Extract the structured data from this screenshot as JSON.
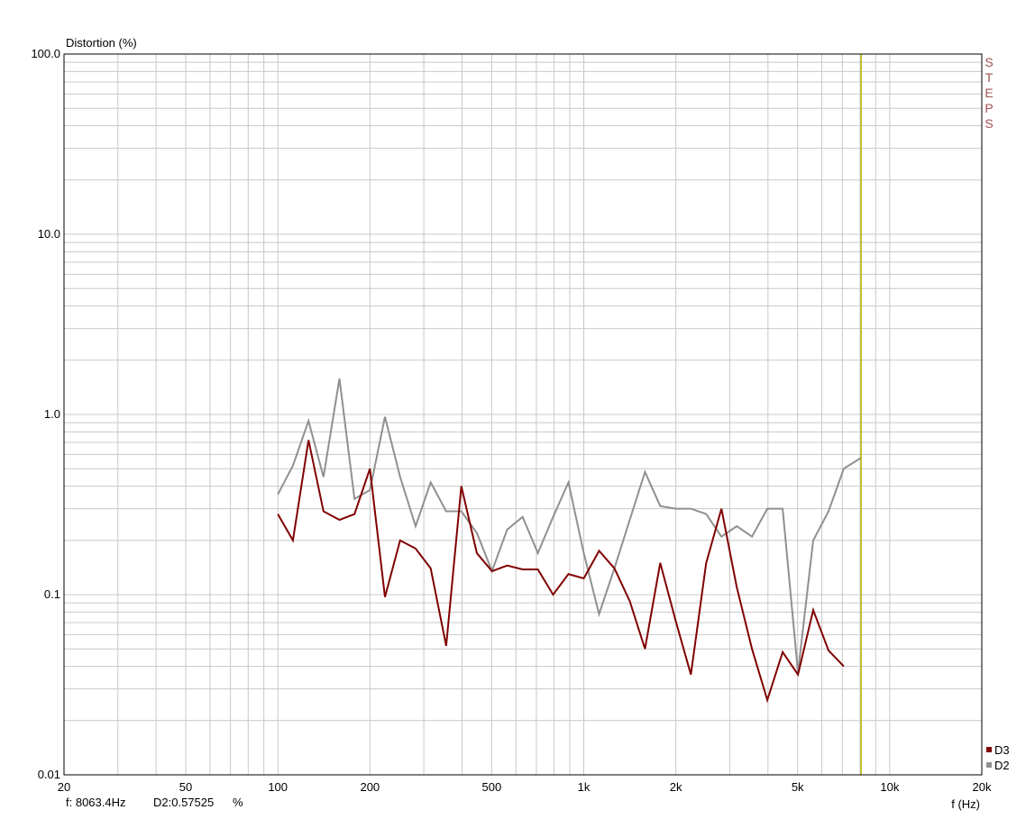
{
  "readout": {
    "freq": "f: 8063.4Hz",
    "value": "D2:0.57525",
    "unit": "%"
  },
  "steps_label": [
    "S",
    "T",
    "E",
    "P",
    "S"
  ],
  "colors": {
    "grid": "#c8c8c8",
    "axis": "#000000",
    "cursor": "#b8b800",
    "D3": "#800000",
    "D2": "#909090",
    "steps": "#a05050"
  },
  "chart_data": {
    "type": "line",
    "title": "",
    "ylabel": "Distortion (%)",
    "xlabel": "f (Hz)",
    "xscale": "log",
    "yscale": "log",
    "xlim": [
      20,
      20000
    ],
    "ylim": [
      0.01,
      100
    ],
    "grid": true,
    "legend_position": "bottom-right",
    "x_ticks": [
      {
        "value": 20,
        "label": "20"
      },
      {
        "value": 50,
        "label": "50"
      },
      {
        "value": 100,
        "label": "100"
      },
      {
        "value": 200,
        "label": "200"
      },
      {
        "value": 500,
        "label": "500"
      },
      {
        "value": 1000,
        "label": "1k"
      },
      {
        "value": 2000,
        "label": "2k"
      },
      {
        "value": 5000,
        "label": "5k"
      },
      {
        "value": 10000,
        "label": "10k"
      },
      {
        "value": 20000,
        "label": "20k"
      }
    ],
    "y_ticks": [
      {
        "value": 100,
        "label": "100.0"
      },
      {
        "value": 10,
        "label": "10.0"
      },
      {
        "value": 1,
        "label": "1.0"
      },
      {
        "value": 0.1,
        "label": "0.1"
      },
      {
        "value": 0.01,
        "label": "0.01"
      }
    ],
    "cursor_x": 8063.4,
    "series": [
      {
        "name": "D3",
        "color": "#800000",
        "points": [
          [
            100,
            0.28
          ],
          [
            112,
            0.2
          ],
          [
            126,
            0.72
          ],
          [
            141,
            0.29
          ],
          [
            159,
            0.26
          ],
          [
            178,
            0.28
          ],
          [
            200,
            0.5
          ],
          [
            224,
            0.097
          ],
          [
            251,
            0.2
          ],
          [
            282,
            0.18
          ],
          [
            316,
            0.14
          ],
          [
            355,
            0.052
          ],
          [
            398,
            0.4
          ],
          [
            447,
            0.17
          ],
          [
            501,
            0.135
          ],
          [
            562,
            0.145
          ],
          [
            631,
            0.138
          ],
          [
            708,
            0.138
          ],
          [
            794,
            0.1
          ],
          [
            891,
            0.13
          ],
          [
            1000,
            0.123
          ],
          [
            1122,
            0.175
          ],
          [
            1259,
            0.14
          ],
          [
            1413,
            0.092
          ],
          [
            1585,
            0.05
          ],
          [
            1778,
            0.15
          ],
          [
            1995,
            0.072
          ],
          [
            2239,
            0.036
          ],
          [
            2512,
            0.15
          ],
          [
            2818,
            0.3
          ],
          [
            3162,
            0.11
          ],
          [
            3548,
            0.05
          ],
          [
            3981,
            0.026
          ],
          [
            4467,
            0.048
          ],
          [
            5012,
            0.036
          ],
          [
            5623,
            0.082
          ],
          [
            6310,
            0.049
          ],
          [
            7079,
            0.04
          ]
        ]
      },
      {
        "name": "D2",
        "color": "#909090",
        "points": [
          [
            100,
            0.36
          ],
          [
            112,
            0.52
          ],
          [
            126,
            0.92
          ],
          [
            141,
            0.45
          ],
          [
            159,
            1.58
          ],
          [
            178,
            0.34
          ],
          [
            200,
            0.38
          ],
          [
            224,
            0.97
          ],
          [
            251,
            0.45
          ],
          [
            282,
            0.24
          ],
          [
            316,
            0.42
          ],
          [
            355,
            0.29
          ],
          [
            398,
            0.29
          ],
          [
            447,
            0.22
          ],
          [
            501,
            0.135
          ],
          [
            562,
            0.23
          ],
          [
            631,
            0.27
          ],
          [
            708,
            0.17
          ],
          [
            794,
            0.27
          ],
          [
            891,
            0.42
          ],
          [
            1000,
            0.17
          ],
          [
            1122,
            0.078
          ],
          [
            1259,
            0.14
          ],
          [
            1413,
            0.26
          ],
          [
            1585,
            0.48
          ],
          [
            1778,
            0.31
          ],
          [
            1995,
            0.3
          ],
          [
            2239,
            0.3
          ],
          [
            2512,
            0.28
          ],
          [
            2818,
            0.21
          ],
          [
            3162,
            0.24
          ],
          [
            3548,
            0.21
          ],
          [
            3981,
            0.3
          ],
          [
            4467,
            0.3
          ],
          [
            5012,
            0.037
          ],
          [
            5623,
            0.2
          ],
          [
            6310,
            0.29
          ],
          [
            7079,
            0.5
          ],
          [
            8063.4,
            0.575
          ]
        ]
      }
    ]
  }
}
